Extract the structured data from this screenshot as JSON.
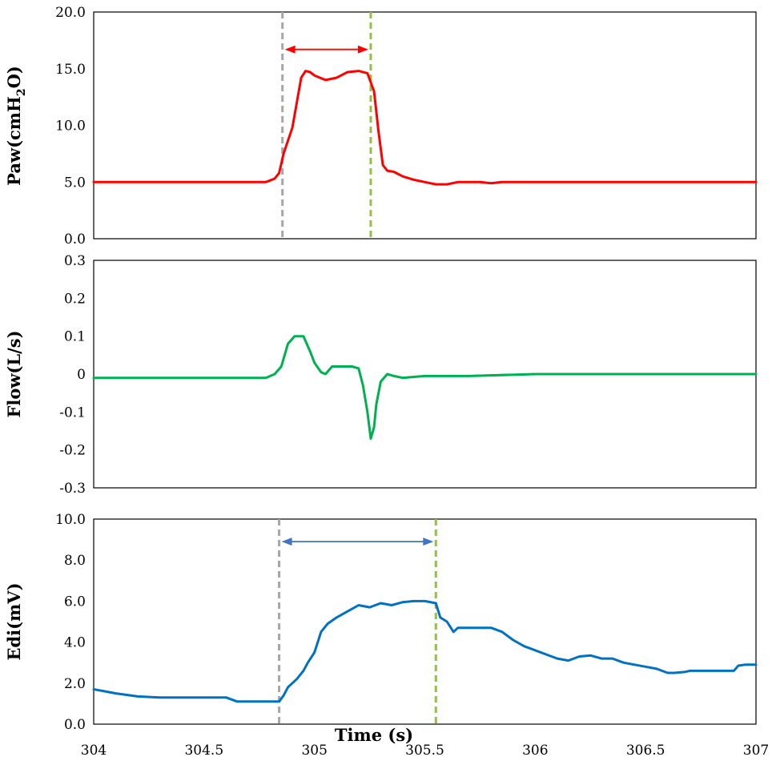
{
  "chart_data": [
    {
      "type": "line",
      "ylabel_main": "Paw(cmH",
      "ylabel_sub": "2",
      "ylabel_tail": "O)",
      "ylim": [
        0,
        20
      ],
      "yticks": [
        "0.0",
        "5.0",
        "10.0",
        "15.0",
        "20.0"
      ],
      "xlim": [
        304,
        307
      ],
      "series": [
        {
          "color": "#ff0000",
          "x": [
            304.0,
            304.6,
            304.78,
            304.82,
            304.84,
            304.86,
            304.9,
            304.92,
            304.94,
            304.96,
            304.98,
            305.0,
            305.05,
            305.1,
            305.15,
            305.2,
            305.24,
            305.27,
            305.29,
            305.31,
            305.33,
            305.36,
            305.4,
            305.45,
            305.5,
            305.55,
            305.6,
            305.65,
            305.75,
            305.8,
            305.85,
            306.0,
            306.5,
            307.0
          ],
          "y": [
            5.0,
            5.0,
            5.0,
            5.3,
            5.8,
            7.5,
            9.8,
            12.0,
            14.2,
            14.8,
            14.7,
            14.4,
            14.0,
            14.2,
            14.7,
            14.8,
            14.6,
            13.0,
            9.5,
            6.5,
            6.0,
            5.9,
            5.5,
            5.2,
            5.0,
            4.8,
            4.8,
            5.0,
            5.0,
            4.9,
            5.0,
            5.0,
            5.0,
            5.0
          ]
        }
      ],
      "vlines": [
        {
          "x": 304.855,
          "color": "#a6a6a6"
        },
        {
          "x": 305.255,
          "color": "#92c045"
        }
      ],
      "arrow": {
        "x1": 304.855,
        "x2": 305.255,
        "y": 16.7,
        "color": "#ff0000"
      }
    },
    {
      "type": "line",
      "ylabel_main": "Flow(L/s)",
      "ylim": [
        -0.3,
        0.3
      ],
      "yticks": [
        "-0.3",
        "-0.2",
        "-0.1",
        "0",
        "0.1",
        "0.2",
        "0.3"
      ],
      "xlim": [
        304,
        307
      ],
      "series": [
        {
          "color": "#00b050",
          "x": [
            304.0,
            304.5,
            304.78,
            304.82,
            304.85,
            304.88,
            304.91,
            304.95,
            304.98,
            305.0,
            305.03,
            305.05,
            305.08,
            305.1,
            305.13,
            305.17,
            305.2,
            305.22,
            305.24,
            305.255,
            305.27,
            305.28,
            305.3,
            305.33,
            305.36,
            305.4,
            305.5,
            305.7,
            306.0,
            306.5,
            307.0
          ],
          "y": [
            -0.01,
            -0.01,
            -0.01,
            0.0,
            0.02,
            0.08,
            0.1,
            0.1,
            0.06,
            0.03,
            0.005,
            0.0,
            0.02,
            0.02,
            0.02,
            0.02,
            0.015,
            -0.03,
            -0.1,
            -0.17,
            -0.14,
            -0.08,
            -0.02,
            0.0,
            -0.005,
            -0.01,
            -0.005,
            -0.005,
            0.0,
            0.0,
            0.0
          ]
        }
      ]
    },
    {
      "type": "line",
      "ylabel_main": "Edi(mV)",
      "xlabel": "Time (s)",
      "ylim": [
        0,
        10
      ],
      "yticks": [
        "0.0",
        "2.0",
        "4.0",
        "6.0",
        "8.0",
        "10.0"
      ],
      "xlim": [
        304,
        307
      ],
      "xticks": [
        "304",
        "304.5",
        "305",
        "305.5",
        "306",
        "306.5",
        "307"
      ],
      "series": [
        {
          "color": "#0070c0",
          "x": [
            304.0,
            304.05,
            304.1,
            304.2,
            304.3,
            304.4,
            304.5,
            304.6,
            304.65,
            304.7,
            304.8,
            304.84,
            304.86,
            304.88,
            304.9,
            304.92,
            304.95,
            304.97,
            305.0,
            305.03,
            305.06,
            305.1,
            305.15,
            305.2,
            305.25,
            305.3,
            305.35,
            305.4,
            305.45,
            305.5,
            305.55,
            305.57,
            305.6,
            305.63,
            305.65,
            305.7,
            305.8,
            305.85,
            305.9,
            305.95,
            306.0,
            306.05,
            306.1,
            306.15,
            306.2,
            306.25,
            306.3,
            306.35,
            306.4,
            306.45,
            306.5,
            306.55,
            306.6,
            306.63,
            306.68,
            306.7,
            306.8,
            306.85,
            306.9,
            306.92,
            306.95,
            307.0
          ],
          "y": [
            1.7,
            1.6,
            1.5,
            1.35,
            1.3,
            1.3,
            1.3,
            1.3,
            1.1,
            1.1,
            1.1,
            1.1,
            1.4,
            1.8,
            2.0,
            2.2,
            2.6,
            3.0,
            3.5,
            4.5,
            4.9,
            5.2,
            5.5,
            5.8,
            5.7,
            5.9,
            5.8,
            5.95,
            6.0,
            6.0,
            5.9,
            5.2,
            5.0,
            4.5,
            4.7,
            4.7,
            4.7,
            4.5,
            4.1,
            3.8,
            3.6,
            3.4,
            3.2,
            3.1,
            3.3,
            3.35,
            3.2,
            3.2,
            3.0,
            2.9,
            2.8,
            2.7,
            2.5,
            2.5,
            2.55,
            2.6,
            2.6,
            2.6,
            2.6,
            2.85,
            2.9,
            2.9
          ]
        }
      ],
      "vlines": [
        {
          "x": 304.84,
          "color": "#a6a6a6"
        },
        {
          "x": 305.55,
          "color": "#92c045"
        }
      ],
      "arrow": {
        "x1": 304.84,
        "x2": 305.55,
        "y": 8.9,
        "color": "#4472c4"
      }
    }
  ]
}
